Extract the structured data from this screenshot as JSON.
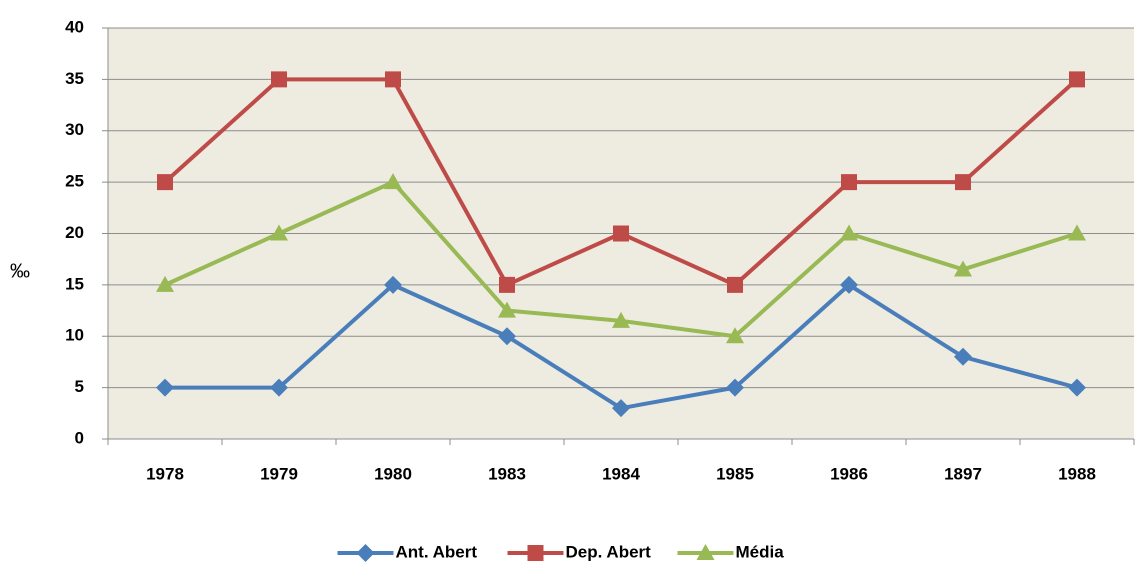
{
  "chart_data": {
    "type": "line",
    "ylabel": "‰",
    "categories": [
      "1978",
      "1979",
      "1980",
      "1983",
      "1984",
      "1985",
      "1986",
      "1897",
      "1988"
    ],
    "series": [
      {
        "name": "Ant. Abert",
        "color": "#4a7ebb",
        "marker": "diamond",
        "values": [
          5,
          5,
          15,
          10,
          3,
          5,
          15,
          8,
          5
        ]
      },
      {
        "name": "Dep. Abert",
        "color": "#be4b48",
        "marker": "square",
        "values": [
          25,
          35,
          35,
          15,
          20,
          15,
          25,
          25,
          35
        ]
      },
      {
        "name": "Média",
        "color": "#98b954",
        "marker": "triangle",
        "values": [
          15,
          20,
          25,
          12.5,
          11.5,
          10,
          20,
          16.5,
          20
        ]
      }
    ],
    "ylim": [
      0,
      40
    ],
    "yticks": [
      0,
      5,
      10,
      15,
      20,
      25,
      30,
      35,
      40
    ],
    "grid": true,
    "legend": "bottom"
  }
}
